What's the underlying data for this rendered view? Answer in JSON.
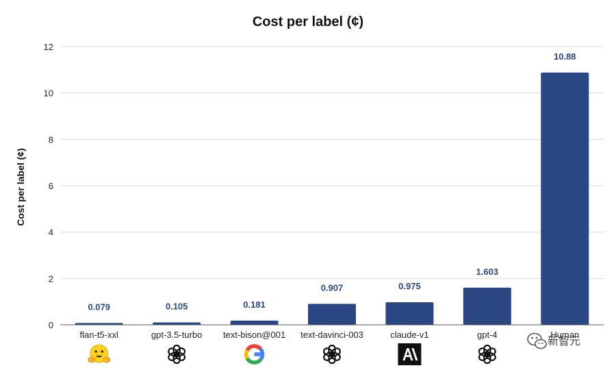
{
  "chart_data": {
    "type": "bar",
    "title": "Cost per label (¢)",
    "xlabel": "",
    "ylabel": "Cost per label (¢)",
    "ylim": [
      0,
      12
    ],
    "yticks": [
      0,
      2,
      4,
      6,
      8,
      10,
      12
    ],
    "grid": true,
    "legend": "none",
    "categories": [
      "flan-t5-xxl",
      "gpt-3.5-turbo",
      "text-bison@001",
      "text-davinci-003",
      "claude-v1",
      "gpt-4",
      "Human"
    ],
    "values": [
      0.079,
      0.105,
      0.181,
      0.907,
      0.975,
      1.603,
      10.88
    ],
    "value_labels": [
      "0.079",
      "0.105",
      "0.181",
      "0.907",
      "0.975",
      "1.603",
      "10.88"
    ],
    "category_icons": [
      "hugging-face-icon",
      "openai-icon",
      "google-icon",
      "openai-icon",
      "anthropic-icon",
      "openai-icon",
      ""
    ],
    "bar_color": "#2a4683",
    "label_color": "#2a4683"
  },
  "watermark": {
    "text": "新智元",
    "icon": "wechat-icon"
  }
}
